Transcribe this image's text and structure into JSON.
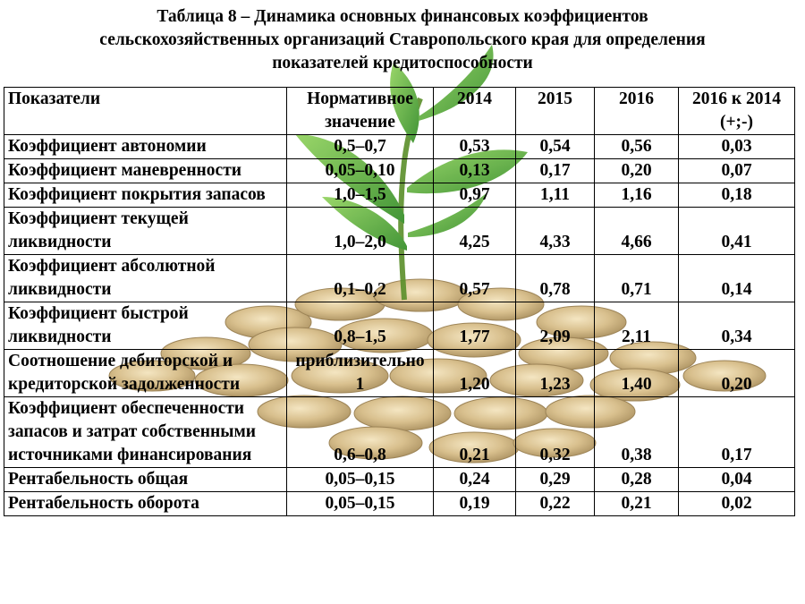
{
  "title": {
    "line1": "Таблица 8 – Динамика основных финансовых коэффициентов",
    "line2": "сельскохозяйственных организаций Ставропольского края для определения",
    "line3": "показателей кредитоспособности"
  },
  "table": {
    "headers": [
      "Показатели",
      "Нормативное значение",
      "2014",
      "2015",
      "2016",
      "2016 к 2014 (+;-)"
    ],
    "rows": [
      [
        "Коэффициент автономии",
        "0,5–0,7",
        "0,53",
        "0,54",
        "0,56",
        "0,03"
      ],
      [
        "Коэффициент маневренности",
        "0,05–0,10",
        "0,13",
        "0,17",
        "0,20",
        "0,07"
      ],
      [
        "Коэффициент покрытия запасов",
        "1,0–1,5",
        "0,97",
        "1,11",
        "1,16",
        "0,18"
      ],
      [
        "Коэффициент текущей ликвидности",
        "1,0–2,0",
        "4,25",
        "4,33",
        "4,66",
        "0,41"
      ],
      [
        "Коэффициент абсолютной ликвидности",
        "0,1–0,2",
        "0,57",
        "0,78",
        "0,71",
        "0,14"
      ],
      [
        "Коэффициент быстрой ликвидности",
        "0,8–1,5",
        "1,77",
        "2,09",
        "2,11",
        "0,34"
      ],
      [
        "Соотношение дебиторской и кредиторской задолженности",
        "приблизительно 1",
        "1,20",
        "1,23",
        "1,40",
        "0,20"
      ],
      [
        "Коэффициент обеспеченности запасов и затрат собственными источниками финансирования",
        "0,6–0,8",
        "0,21",
        "0,32",
        "0,38",
        "0,17"
      ],
      [
        "Рентабельность общая",
        "0,05–0,15",
        "0,24",
        "0,29",
        "0,28",
        "0,04"
      ],
      [
        "Рентабельность оборота",
        "0,05–0,15",
        "0,19",
        "0,22",
        "0,21",
        "0,02"
      ]
    ]
  },
  "decoration": {
    "image": "coins-with-sprout",
    "coin_color": "#c9a86a",
    "leaf_color": "#3e9b2e"
  }
}
